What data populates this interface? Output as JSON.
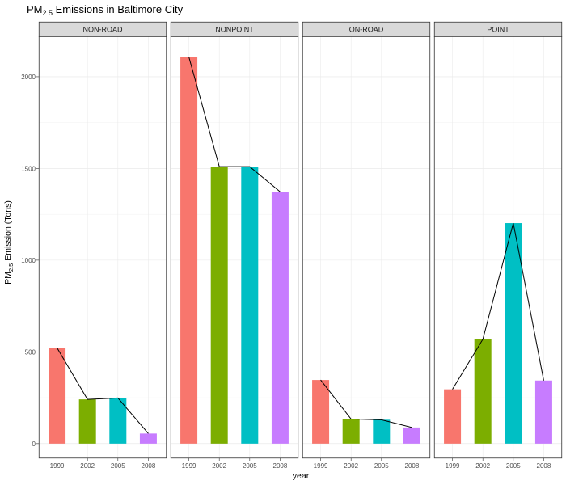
{
  "chart_data": {
    "type": "bar",
    "title": {
      "prefix": "PM",
      "subscript": "2.5",
      "suffix": " Emissions in Baltimore City"
    },
    "xlabel": "year",
    "ylabel": {
      "prefix": "PM",
      "subscript": "2.5",
      "suffix": " Emission (Tons)"
    },
    "categories": [
      "1999",
      "2002",
      "2005",
      "2008"
    ],
    "colors": [
      "#F8766D",
      "#7CAE00",
      "#00BFC4",
      "#C77CFF"
    ],
    "ylim": [
      -80,
      2220
    ],
    "yticks": [
      0,
      500,
      1000,
      1500,
      2000
    ],
    "grid": true,
    "legend": "none",
    "overlay": "black line connecting bar tops within each panel",
    "panels": [
      {
        "name": "NON-ROAD",
        "values": [
          522,
          241,
          249,
          55
        ]
      },
      {
        "name": "NONPOINT",
        "values": [
          2108,
          1510,
          1510,
          1373
        ]
      },
      {
        "name": "ON-ROAD",
        "values": [
          347,
          134,
          130,
          88
        ]
      },
      {
        "name": "POINT",
        "values": [
          296,
          569,
          1202,
          344
        ]
      }
    ]
  }
}
